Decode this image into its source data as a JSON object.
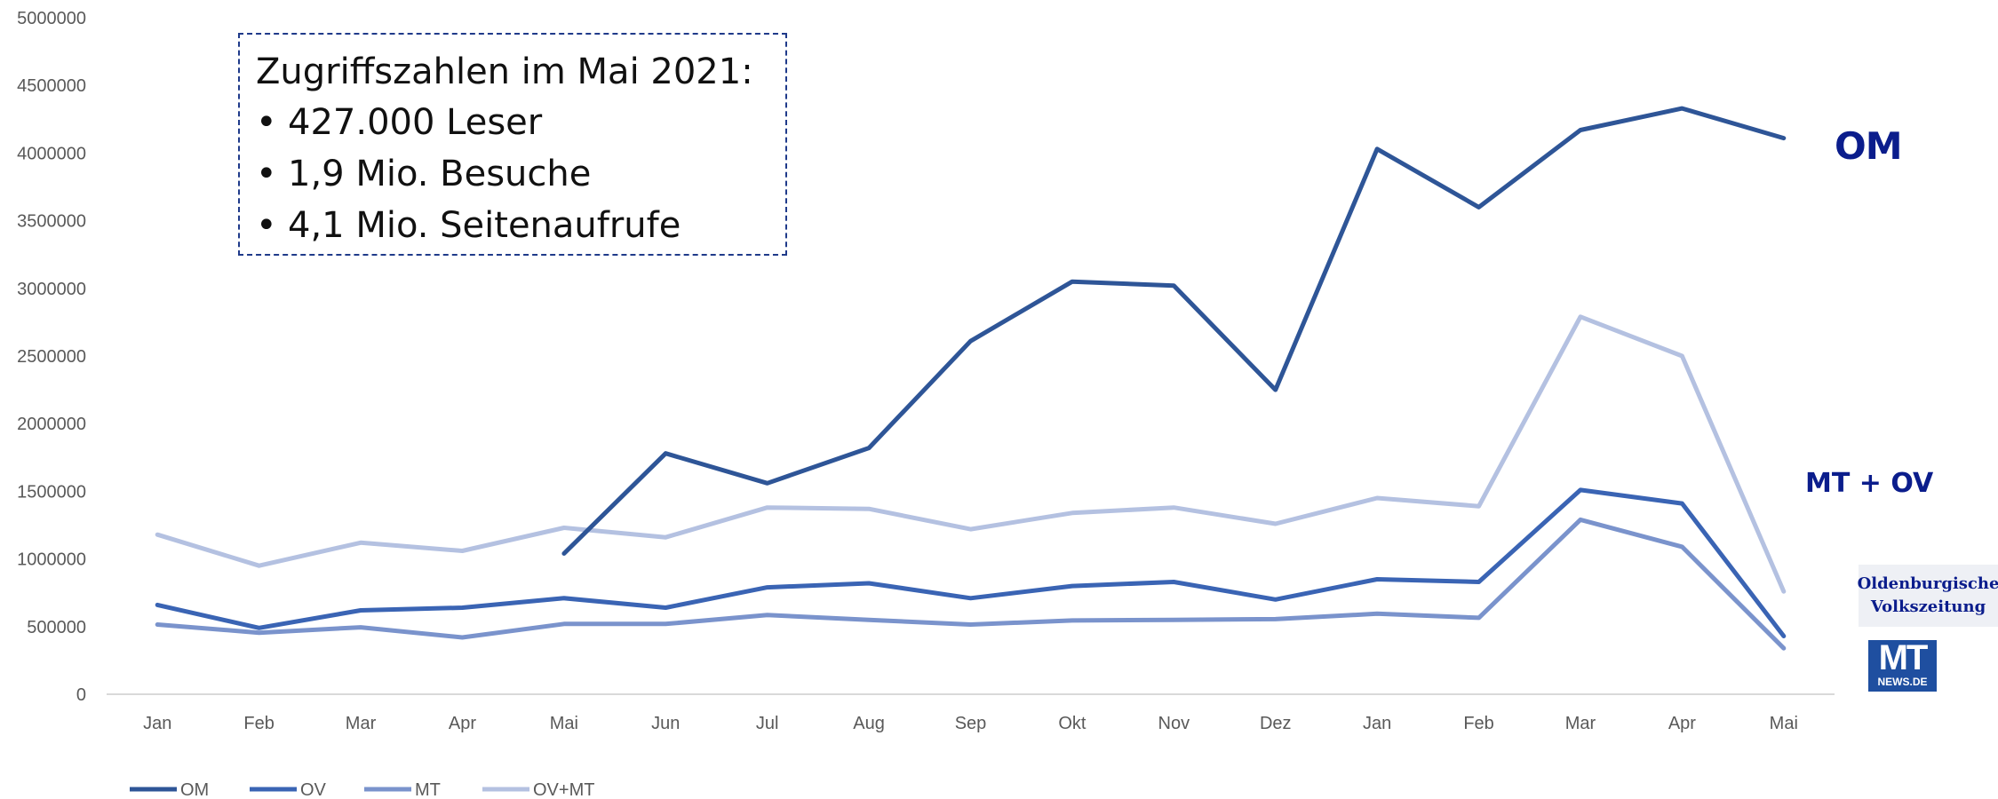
{
  "chart_data": {
    "type": "line",
    "categories": [
      "Jan",
      "Feb",
      "Mar",
      "Apr",
      "Mai",
      "Jun",
      "Jul",
      "Aug",
      "Sep",
      "Okt",
      "Nov",
      "Dez",
      "Jan",
      "Feb",
      "Mar",
      "Apr",
      "Mai"
    ],
    "ylim": [
      0,
      5000000
    ],
    "yticks": [
      0,
      500000,
      1000000,
      1500000,
      2000000,
      2500000,
      3000000,
      3500000,
      4000000,
      4500000,
      5000000
    ],
    "grid": false,
    "legend_position": "bottom-left",
    "series": [
      {
        "name": "OM",
        "color": "#2e5597",
        "values": [
          null,
          null,
          null,
          null,
          1040000,
          1780000,
          1560000,
          1820000,
          2610000,
          3050000,
          3020000,
          2250000,
          4030000,
          3600000,
          4170000,
          4330000,
          4110000
        ]
      },
      {
        "name": "OV",
        "color": "#3a64b4",
        "values": [
          660000,
          490000,
          620000,
          640000,
          710000,
          640000,
          790000,
          820000,
          710000,
          800000,
          830000,
          700000,
          850000,
          830000,
          1510000,
          1410000,
          430000
        ]
      },
      {
        "name": "MT",
        "color": "#7a93cc",
        "values": [
          515000,
          455000,
          495000,
          420000,
          520000,
          520000,
          585000,
          550000,
          515000,
          545000,
          550000,
          555000,
          595000,
          565000,
          1290000,
          1090000,
          340000
        ]
      },
      {
        "name": "OV+MT",
        "color": "#b4c1e1",
        "values": [
          1180000,
          950000,
          1120000,
          1060000,
          1230000,
          1160000,
          1380000,
          1370000,
          1220000,
          1340000,
          1380000,
          1260000,
          1450000,
          1390000,
          2790000,
          2500000,
          760000
        ]
      }
    ]
  },
  "info_box": {
    "title": "Zugriffszahlen im Mai 2021:",
    "items": [
      "427.000 Leser",
      "1,9 Mio. Besuche",
      "4,1 Mio. Seitenaufrufe"
    ],
    "bullet": "•"
  },
  "brands": {
    "om": "OM",
    "mt_ov": "MT + OV",
    "ov_logo_line1": "Oldenburgische",
    "ov_logo_line2": "Volkszeitung",
    "mt_logo_big": "MT",
    "mt_logo_small": "NEWS.DE"
  }
}
